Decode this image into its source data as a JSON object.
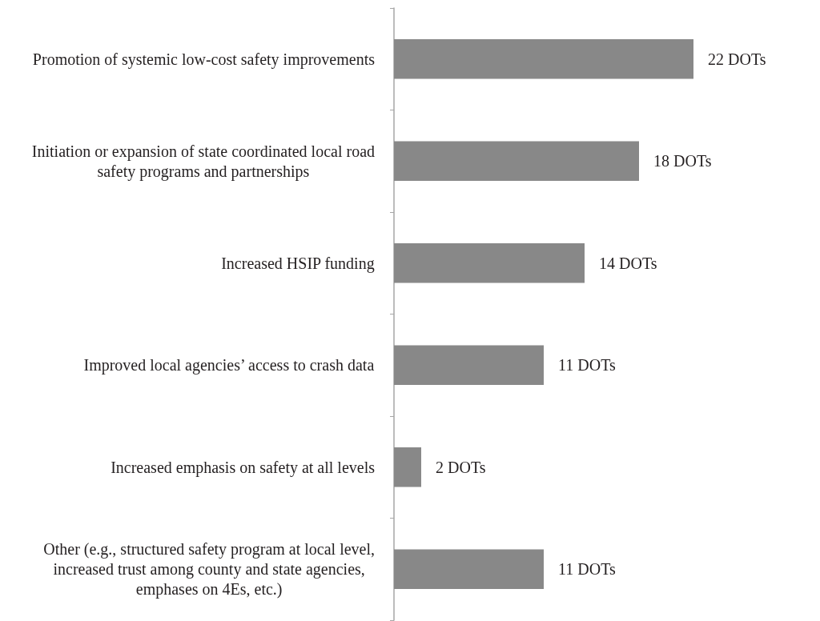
{
  "chart_data": {
    "type": "bar",
    "orientation": "horizontal",
    "categories": [
      "Promotion of systemic low-cost safety improvements",
      "Initiation or expansion of state coordinated local road safety programs and partnerships",
      "Increased HSIP funding",
      "Improved local agencies’ access to crash data",
      "Increased emphasis on safety at all levels",
      "Other (e.g., structured safety program at local level, increased trust among county and state agencies, emphases on 4Es, etc.)"
    ],
    "values": [
      22,
      18,
      14,
      11,
      2,
      11
    ],
    "color": "#888888",
    "value_labels": [
      "22 DOTs",
      "18 DOTs",
      "14 DOTs",
      "11 DOTs",
      "2 DOTs",
      "11 DOTs"
    ]
  }
}
